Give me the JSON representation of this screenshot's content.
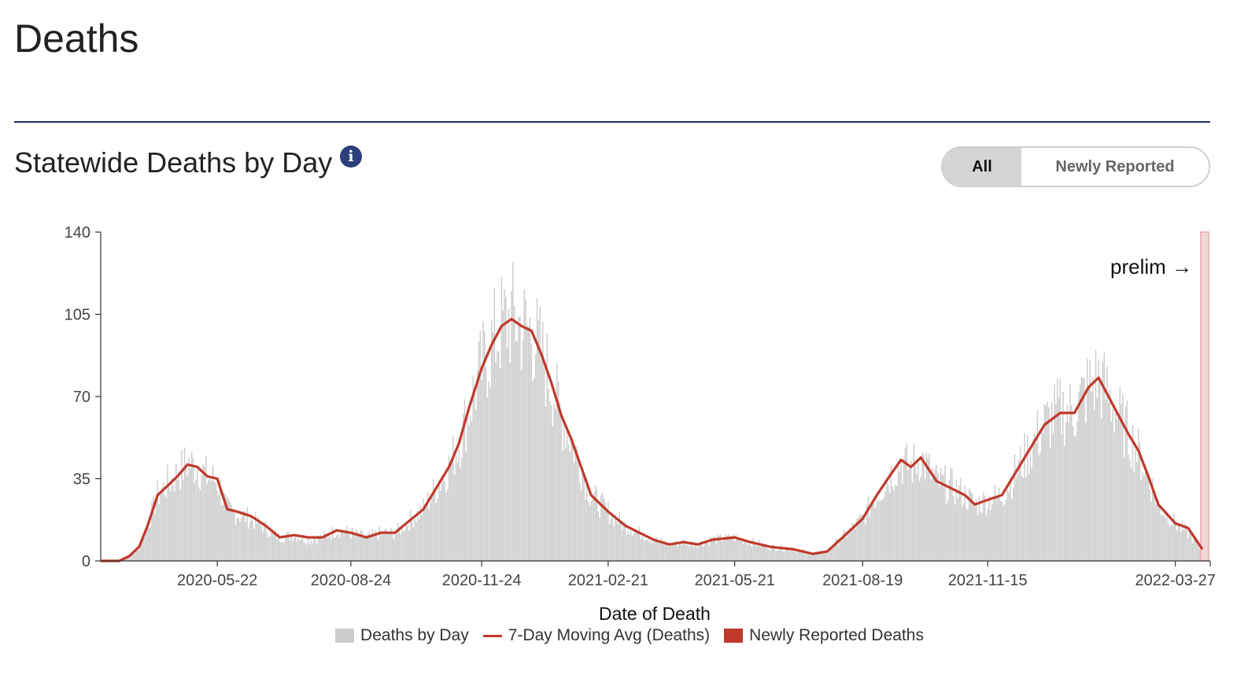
{
  "page": {
    "title": "Deaths"
  },
  "section": {
    "title": "Statewide Deaths by Day",
    "info_icon": "info-icon"
  },
  "toggle": {
    "options": [
      "All",
      "Newly Reported"
    ],
    "selected": "All"
  },
  "colors": {
    "bars": "#cccccc",
    "line": "#c0392b",
    "newly_reported": "#c0392b",
    "prelim": "#f1d6d6",
    "divider": "#1f2d5a",
    "info": "#2f3f7a"
  },
  "chart_data": {
    "type": "bar",
    "xlabel": "Date of Death",
    "ylabel": "",
    "ylim": [
      0,
      140
    ],
    "yticks": [
      0,
      35,
      70,
      105,
      140
    ],
    "x_start": "2020-03-01",
    "x_end": "2022-04-15",
    "xticks": [
      "2020-05-22",
      "2020-08-24",
      "2020-11-24",
      "2021-02-21",
      "2021-05-21",
      "2021-08-19",
      "2021-11-15",
      "2022-03-27"
    ],
    "prelim_label": "prelim →",
    "prelim_start": "2022-04-15",
    "series": [
      {
        "name": "Deaths by Day",
        "type": "bar",
        "points": [
          [
            "2020-03-01",
            0
          ],
          [
            "2020-03-14",
            0
          ],
          [
            "2020-03-21",
            2
          ],
          [
            "2020-03-28",
            6
          ],
          [
            "2020-04-03",
            15
          ],
          [
            "2020-04-10",
            28
          ],
          [
            "2020-04-17",
            33
          ],
          [
            "2020-04-24",
            37
          ],
          [
            "2020-05-01",
            42
          ],
          [
            "2020-05-08",
            40
          ],
          [
            "2020-05-15",
            36
          ],
          [
            "2020-05-22",
            34
          ],
          [
            "2020-05-29",
            22
          ],
          [
            "2020-06-05",
            20
          ],
          [
            "2020-06-15",
            18
          ],
          [
            "2020-06-25",
            14
          ],
          [
            "2020-07-05",
            10
          ],
          [
            "2020-07-15",
            11
          ],
          [
            "2020-07-25",
            9
          ],
          [
            "2020-08-04",
            10
          ],
          [
            "2020-08-14",
            13
          ],
          [
            "2020-08-24",
            12
          ],
          [
            "2020-09-04",
            10
          ],
          [
            "2020-09-14",
            12
          ],
          [
            "2020-09-24",
            12
          ],
          [
            "2020-10-04",
            17
          ],
          [
            "2020-10-14",
            22
          ],
          [
            "2020-10-24",
            32
          ],
          [
            "2020-11-01",
            40
          ],
          [
            "2020-11-08",
            50
          ],
          [
            "2020-11-15",
            65
          ],
          [
            "2020-11-24",
            82
          ],
          [
            "2020-12-01",
            92
          ],
          [
            "2020-12-08",
            100
          ],
          [
            "2020-12-15",
            104
          ],
          [
            "2020-12-22",
            100
          ],
          [
            "2020-12-29",
            98
          ],
          [
            "2021-01-05",
            88
          ],
          [
            "2021-01-12",
            76
          ],
          [
            "2021-01-19",
            62
          ],
          [
            "2021-01-26",
            52
          ],
          [
            "2021-02-02",
            40
          ],
          [
            "2021-02-09",
            28
          ],
          [
            "2021-02-21",
            21
          ],
          [
            "2021-03-05",
            15
          ],
          [
            "2021-03-15",
            12
          ],
          [
            "2021-03-25",
            9
          ],
          [
            "2021-04-05",
            7
          ],
          [
            "2021-04-15",
            8
          ],
          [
            "2021-04-25",
            7
          ],
          [
            "2021-05-05",
            9
          ],
          [
            "2021-05-21",
            10
          ],
          [
            "2021-06-01",
            8
          ],
          [
            "2021-06-15",
            6
          ],
          [
            "2021-07-01",
            5
          ],
          [
            "2021-07-15",
            3
          ],
          [
            "2021-07-25",
            4
          ],
          [
            "2021-08-05",
            10
          ],
          [
            "2021-08-19",
            18
          ],
          [
            "2021-08-29",
            28
          ],
          [
            "2021-09-08",
            37
          ],
          [
            "2021-09-15",
            42
          ],
          [
            "2021-09-22",
            40
          ],
          [
            "2021-09-29",
            44
          ],
          [
            "2021-10-10",
            34
          ],
          [
            "2021-10-20",
            32
          ],
          [
            "2021-10-30",
            28
          ],
          [
            "2021-11-06",
            24
          ],
          [
            "2021-11-15",
            26
          ],
          [
            "2021-11-25",
            28
          ],
          [
            "2021-12-05",
            38
          ],
          [
            "2021-12-15",
            48
          ],
          [
            "2021-12-25",
            58
          ],
          [
            "2022-01-05",
            64
          ],
          [
            "2022-01-15",
            64
          ],
          [
            "2022-01-25",
            74
          ],
          [
            "2022-02-01",
            78
          ],
          [
            "2022-02-08",
            70
          ],
          [
            "2022-02-15",
            62
          ],
          [
            "2022-02-22",
            54
          ],
          [
            "2022-03-01",
            46
          ],
          [
            "2022-03-08",
            36
          ],
          [
            "2022-03-15",
            24
          ],
          [
            "2022-03-27",
            16
          ],
          [
            "2022-04-05",
            12
          ],
          [
            "2022-04-15",
            4
          ]
        ]
      },
      {
        "name": "7-Day Moving Avg (Deaths)",
        "type": "line",
        "points": [
          [
            "2020-03-01",
            0
          ],
          [
            "2020-03-14",
            0
          ],
          [
            "2020-03-21",
            2
          ],
          [
            "2020-03-28",
            6
          ],
          [
            "2020-04-03",
            15
          ],
          [
            "2020-04-10",
            28
          ],
          [
            "2020-04-17",
            32
          ],
          [
            "2020-04-24",
            36
          ],
          [
            "2020-05-01",
            41
          ],
          [
            "2020-05-08",
            40
          ],
          [
            "2020-05-15",
            36
          ],
          [
            "2020-05-22",
            35
          ],
          [
            "2020-05-29",
            22
          ],
          [
            "2020-06-05",
            21
          ],
          [
            "2020-06-15",
            19
          ],
          [
            "2020-06-25",
            15
          ],
          [
            "2020-07-05",
            10
          ],
          [
            "2020-07-15",
            11
          ],
          [
            "2020-07-25",
            10
          ],
          [
            "2020-08-04",
            10
          ],
          [
            "2020-08-14",
            13
          ],
          [
            "2020-08-24",
            12
          ],
          [
            "2020-09-04",
            10
          ],
          [
            "2020-09-14",
            12
          ],
          [
            "2020-09-24",
            12
          ],
          [
            "2020-10-04",
            17
          ],
          [
            "2020-10-14",
            22
          ],
          [
            "2020-10-24",
            32
          ],
          [
            "2020-11-01",
            40
          ],
          [
            "2020-11-08",
            50
          ],
          [
            "2020-11-15",
            65
          ],
          [
            "2020-11-24",
            82
          ],
          [
            "2020-12-01",
            92
          ],
          [
            "2020-12-08",
            100
          ],
          [
            "2020-12-15",
            103
          ],
          [
            "2020-12-22",
            100
          ],
          [
            "2020-12-29",
            98
          ],
          [
            "2021-01-05",
            88
          ],
          [
            "2021-01-12",
            76
          ],
          [
            "2021-01-19",
            62
          ],
          [
            "2021-01-26",
            52
          ],
          [
            "2021-02-02",
            40
          ],
          [
            "2021-02-09",
            28
          ],
          [
            "2021-02-21",
            21
          ],
          [
            "2021-03-05",
            15
          ],
          [
            "2021-03-15",
            12
          ],
          [
            "2021-03-25",
            9
          ],
          [
            "2021-04-05",
            7
          ],
          [
            "2021-04-15",
            8
          ],
          [
            "2021-04-25",
            7
          ],
          [
            "2021-05-05",
            9
          ],
          [
            "2021-05-21",
            10
          ],
          [
            "2021-06-01",
            8
          ],
          [
            "2021-06-15",
            6
          ],
          [
            "2021-07-01",
            5
          ],
          [
            "2021-07-15",
            3
          ],
          [
            "2021-07-25",
            4
          ],
          [
            "2021-08-05",
            10
          ],
          [
            "2021-08-19",
            18
          ],
          [
            "2021-08-29",
            28
          ],
          [
            "2021-09-08",
            37
          ],
          [
            "2021-09-15",
            43
          ],
          [
            "2021-09-22",
            40
          ],
          [
            "2021-09-29",
            44
          ],
          [
            "2021-10-10",
            34
          ],
          [
            "2021-10-20",
            31
          ],
          [
            "2021-10-30",
            28
          ],
          [
            "2021-11-06",
            24
          ],
          [
            "2021-11-15",
            26
          ],
          [
            "2021-11-25",
            28
          ],
          [
            "2021-12-05",
            38
          ],
          [
            "2021-12-15",
            48
          ],
          [
            "2021-12-25",
            58
          ],
          [
            "2022-01-05",
            63
          ],
          [
            "2022-01-15",
            63
          ],
          [
            "2022-01-25",
            74
          ],
          [
            "2022-02-01",
            78
          ],
          [
            "2022-02-08",
            70
          ],
          [
            "2022-02-15",
            62
          ],
          [
            "2022-02-22",
            54
          ],
          [
            "2022-03-01",
            47
          ],
          [
            "2022-03-08",
            36
          ],
          [
            "2022-03-15",
            24
          ],
          [
            "2022-03-27",
            16
          ],
          [
            "2022-04-05",
            14
          ],
          [
            "2022-04-15",
            5
          ]
        ]
      },
      {
        "name": "Newly Reported Deaths",
        "type": "bar",
        "points": []
      }
    ],
    "legend": [
      "Deaths by Day",
      "7-Day Moving Avg (Deaths)",
      "Newly Reported Deaths"
    ],
    "legend_position": "bottom",
    "grid": false
  }
}
